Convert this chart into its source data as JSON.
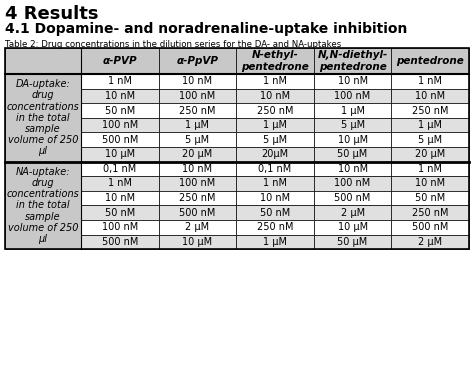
{
  "title1": "4 Results",
  "title2": "4.1 Dopamine- and noradrenaline-uptake inhibition",
  "caption": "Table 2: Drug concentrations in the dilution series for the DA- and NA-uptakes",
  "col_headers": [
    "α-PVP",
    "α-PpVP",
    "N-ethyl-\npentedrone",
    "N,N-diethyl-\npentedrone",
    "pentedrone"
  ],
  "row_header_da": "DA-uptake:\ndrug\nconcentrations\nin the total\nsample\nvolume of 250\nμl",
  "row_header_na": "NA-uptake:\ndrug\nconcentrations\nin the total\nsample\nvolume of 250\nμl",
  "da_rows": [
    [
      "1 nM",
      "10 nM",
      "1 nM",
      "10 nM",
      "1 nM"
    ],
    [
      "10 nM",
      "100 nM",
      "10 nM",
      "100 nM",
      "10 nM"
    ],
    [
      "50 nM",
      "250 nM",
      "250 nM",
      "1 μM",
      "250 nM"
    ],
    [
      "100 nM",
      "1 μM",
      "1 μM",
      "5 μM",
      "1 μM"
    ],
    [
      "500 nM",
      "5 μM",
      "5 μM",
      "10 μM",
      "5 μM"
    ],
    [
      "10 μM",
      "20 μM",
      "20μM",
      "50 μM",
      "20 μM"
    ]
  ],
  "na_rows": [
    [
      "0,1 nM",
      "10 nM",
      "0,1 nM",
      "10 nM",
      "1 nM"
    ],
    [
      "1 nM",
      "100 nM",
      "1 nM",
      "100 nM",
      "10 nM"
    ],
    [
      "10 nM",
      "250 nM",
      "10 nM",
      "500 nM",
      "50 nM"
    ],
    [
      "50 nM",
      "500 nM",
      "50 nM",
      "2 μM",
      "250 nM"
    ],
    [
      "100 nM",
      "2 μM",
      "250 nM",
      "10 μM",
      "500 nM"
    ],
    [
      "500 nM",
      "10 μM",
      "1 μM",
      "50 μM",
      "2 μM"
    ]
  ],
  "bg_gray": "#c8c8c8",
  "bg_light_gray": "#e0e0e0",
  "bg_white": "#ffffff",
  "title1_fontsize": 13,
  "title2_fontsize": 10,
  "caption_fontsize": 6.2,
  "header_fontsize": 7.5,
  "cell_fontsize": 7,
  "row_hdr_fontsize": 7
}
